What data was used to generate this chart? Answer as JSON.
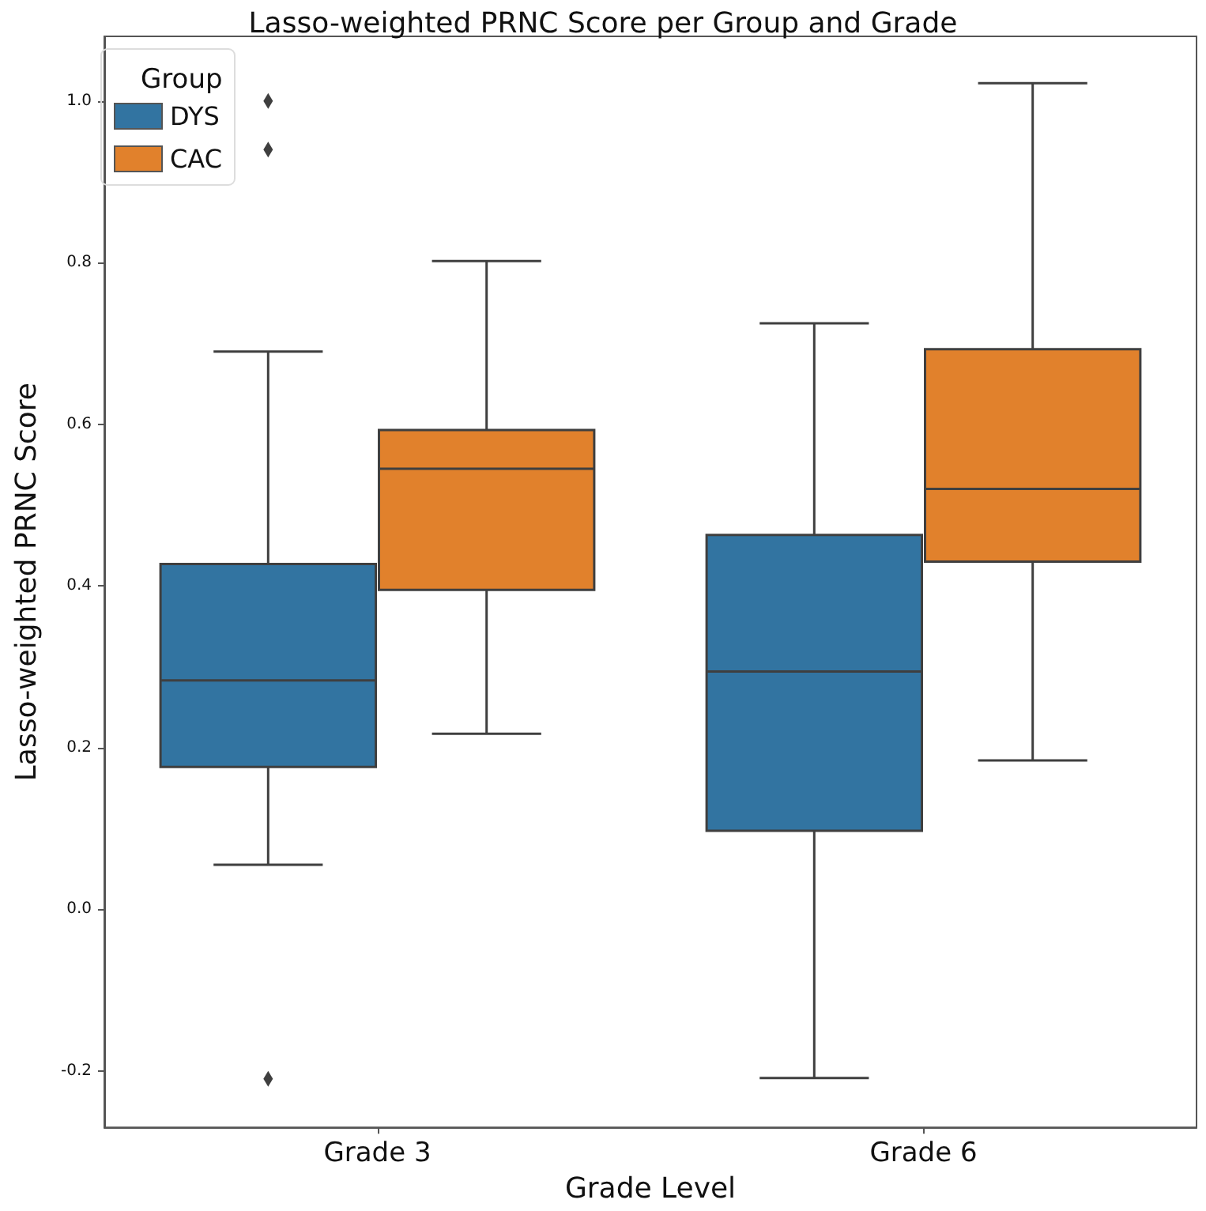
{
  "chart_data": {
    "type": "box",
    "title": "Lasso-weighted PRNC Score per Group and Grade",
    "xlabel": "Grade Level",
    "ylabel": "Lasso-weighted PRNC Score",
    "legend_title": "Group",
    "legend": "top left",
    "marker": "diamond",
    "categories": [
      "Grade 3",
      "Grade 6"
    ],
    "series": [
      {
        "name": "DYS",
        "color": "#3274a1",
        "boxes": [
          {
            "low": 0.055,
            "q1": 0.176,
            "median": 0.283,
            "q3": 0.427,
            "high": 0.69,
            "outliers": [
              -0.21,
              0.94,
              1.0
            ]
          },
          {
            "low": -0.209,
            "q1": 0.097,
            "median": 0.294,
            "q3": 0.463,
            "high": 0.725
          }
        ]
      },
      {
        "name": "CAC",
        "color": "#e1812c",
        "boxes": [
          {
            "low": 0.217,
            "q1": 0.395,
            "median": 0.545,
            "q3": 0.593,
            "high": 0.802
          },
          {
            "low": 0.184,
            "q1": 0.43,
            "median": 0.52,
            "q3": 0.693,
            "high": 1.022
          }
        ]
      }
    ],
    "ylim": [
      -0.27,
      1.08
    ],
    "yticks": [
      {
        "value": -0.2,
        "label": "-0.2"
      },
      {
        "value": 0,
        "label": "0.0"
      },
      {
        "value": 0.2,
        "label": "0.2"
      },
      {
        "value": 0.4,
        "label": "0.4"
      },
      {
        "value": 0.6,
        "label": "0.6"
      },
      {
        "value": 0.8,
        "label": "0.8"
      },
      {
        "value": 1.0,
        "label": "1.0"
      }
    ]
  }
}
